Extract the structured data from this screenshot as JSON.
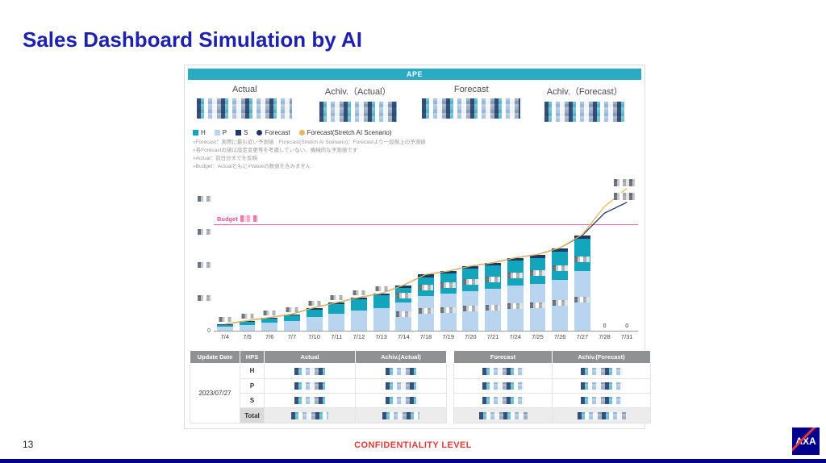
{
  "slide": {
    "title": "Sales Dashboard Simulation by AI",
    "page_number": "13",
    "footer": "CONFIDENTIALITY LEVEL",
    "logo": "AXA"
  },
  "dashboard": {
    "header": "APE",
    "kpis": [
      {
        "label": "Actual"
      },
      {
        "label": "Achiv.（Actual）"
      },
      {
        "label": "Forecast"
      },
      {
        "label": "Achiv.（Forecast）"
      }
    ],
    "legend": [
      {
        "label": "H",
        "color": "#12a5bc",
        "marker": "square"
      },
      {
        "label": "P",
        "color": "#b8d4ee",
        "marker": "square"
      },
      {
        "label": "S",
        "color": "#1f3864",
        "marker": "square"
      },
      {
        "label": "Forecast",
        "color": "#1f3864",
        "marker": "dot"
      },
      {
        "label": "Forecast(Stretch AI Scenario)",
        "color": "#e6b85c",
        "marker": "dot"
      }
    ],
    "footnotes": [
      "»Forecast：実際に最も近い予測値　Forecast(Stretch AI Scenario)：Forecastより一段階上の予測値",
      "»各Forecastの値は設定変更等を考慮していない、機械的な予測値です",
      "»Actual：前日分までを反映",
      "»Budget：Actualともに#Valueの数値を含みません"
    ],
    "budget_label": "Budget"
  },
  "chart_data": {
    "type": "bar",
    "stacked": true,
    "title": "APE",
    "xlabel": "",
    "ylabel": "",
    "ylim": [
      0,
      185
    ],
    "grid": false,
    "legend_position": "top-left",
    "categories": [
      "7/4",
      "7/5",
      "7/6",
      "7/7",
      "7/10",
      "7/11",
      "7/12",
      "7/13",
      "7/14",
      "7/18",
      "7/19",
      "7/20",
      "7/21",
      "7/24",
      "7/25",
      "7/26",
      "7/27",
      "7/28",
      "7/31"
    ],
    "series": [
      {
        "name": "P",
        "color": "#b8d4ee",
        "values": [
          5,
          7,
          10,
          12,
          17,
          21,
          25,
          28,
          34,
          42,
          45,
          48,
          51,
          55,
          57,
          62,
          72,
          0,
          0
        ]
      },
      {
        "name": "H",
        "color": "#12a5bc",
        "values": [
          2,
          4,
          5,
          7,
          9,
          11,
          13,
          15,
          18,
          23,
          24,
          27,
          28,
          30,
          31,
          34,
          39,
          0,
          0
        ]
      },
      {
        "name": "S",
        "color": "#1f3864",
        "values": [
          1,
          1,
          1,
          1,
          2,
          2,
          2,
          2,
          3,
          3,
          3,
          3,
          3,
          3,
          4,
          4,
          4,
          0,
          0
        ]
      }
    ],
    "lines": [
      {
        "name": "Forecast",
        "color": "#1f3864",
        "values": [
          8,
          12,
          16,
          20,
          28,
          34,
          40,
          45,
          55,
          68,
          72,
          78,
          82,
          88,
          92,
          100,
          115,
          142,
          155
        ]
      },
      {
        "name": "Forecast(Stretch AI Scenario)",
        "color": "#e6b85c",
        "values": [
          8,
          12,
          16,
          20,
          28,
          34,
          40,
          45,
          55,
          68,
          72,
          78,
          82,
          88,
          92,
          100,
          116,
          150,
          172
        ]
      }
    ],
    "budget": 128,
    "y_ticks": [
      40,
      80,
      120,
      160
    ],
    "origin_label": "0",
    "zero_label": "0"
  },
  "table": {
    "left_headers": [
      "Update Date",
      "HPS",
      "Actual",
      "Achiv.(Actual)"
    ],
    "right_headers": [
      "Forecast",
      "Achiv.(Forecast)"
    ],
    "update_date": "2023/07/27",
    "rows": [
      "H",
      "P",
      "S",
      "Total"
    ]
  }
}
